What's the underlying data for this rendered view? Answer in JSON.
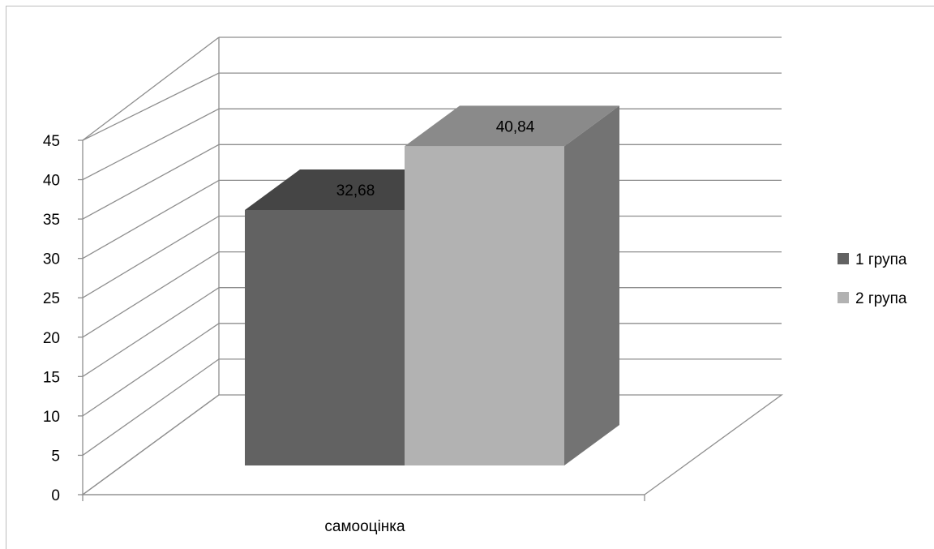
{
  "chart_data": {
    "type": "bar",
    "view": "3d-clustered-column",
    "categories": [
      "самооцінка"
    ],
    "series": [
      {
        "name": "1 група",
        "values": [
          32.68
        ],
        "color": "#626262",
        "top_color": "#454545",
        "side_color": "#4a4a4a"
      },
      {
        "name": "2 група",
        "values": [
          40.84
        ],
        "color": "#b2b2b2",
        "top_color": "#8a8a8a",
        "side_color": "#737373"
      }
    ],
    "data_labels": [
      "32,68",
      "40,84"
    ],
    "y_ticks": [
      "0",
      "5",
      "10",
      "15",
      "20",
      "25",
      "30",
      "35",
      "40",
      "45"
    ],
    "ylim": [
      0,
      50
    ],
    "grid": true,
    "legend_position": "right",
    "title": "",
    "xlabel": "",
    "ylabel": ""
  }
}
